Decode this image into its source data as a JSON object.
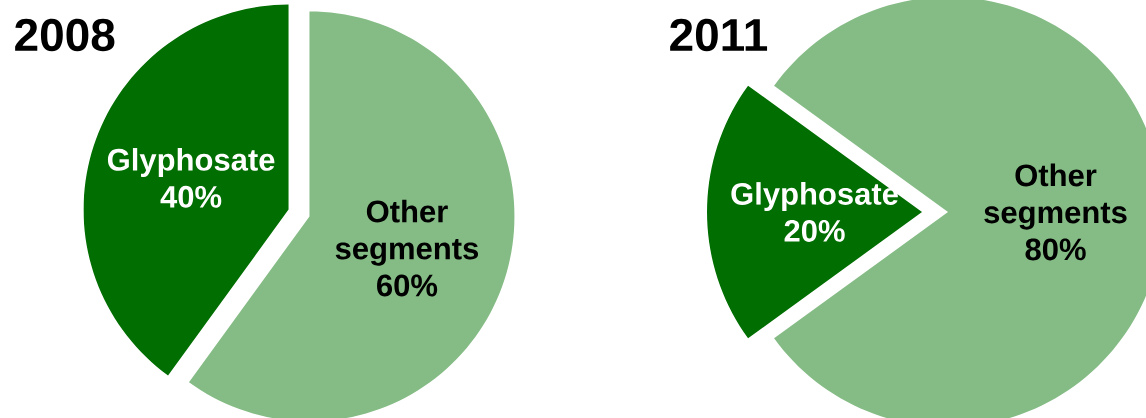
{
  "chart_data": [
    {
      "type": "pie",
      "title": "2008",
      "categories": [
        "Glyphosate",
        "Other segments"
      ],
      "values": [
        40,
        60
      ],
      "value_labels": [
        "40%",
        "60%"
      ],
      "colors": [
        "#006e00",
        "#85bc85"
      ]
    },
    {
      "type": "pie",
      "title": "2011",
      "categories": [
        "Glyphosate",
        "Other segments"
      ],
      "values": [
        20,
        80
      ],
      "value_labels": [
        "20%",
        "80%"
      ],
      "colors": [
        "#006e00",
        "#85bc85"
      ]
    }
  ]
}
